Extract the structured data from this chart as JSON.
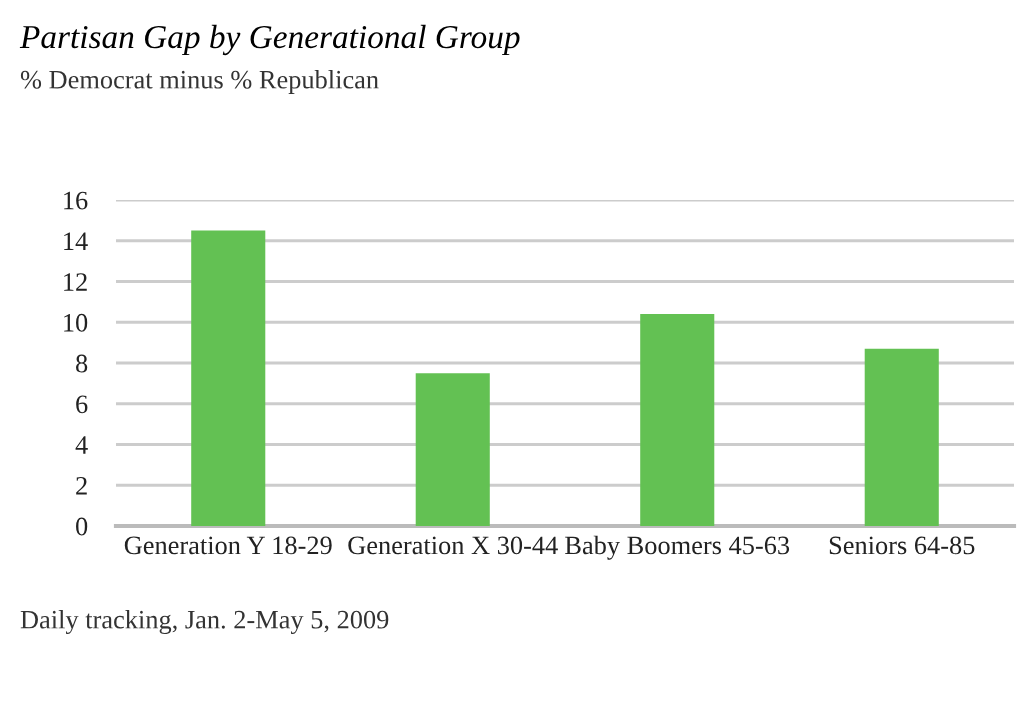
{
  "chart_data": {
    "type": "bar",
    "title": "Partisan Gap by Generational Group",
    "subtitle": "% Democrat minus % Republican",
    "categories": [
      "Generation Y 18-29",
      "Generation X 30-44",
      "Baby Boomers 45-63",
      "Seniors 64-85"
    ],
    "values": [
      14.5,
      7.5,
      10.4,
      8.7
    ],
    "color": "#63c153",
    "ylim": [
      0,
      16
    ],
    "yticks": [
      0,
      2,
      4,
      6,
      8,
      10,
      12,
      14,
      16
    ],
    "grid": "y",
    "annotations": [
      "Daily tracking, Jan. 2-May 5, 2009"
    ]
  }
}
